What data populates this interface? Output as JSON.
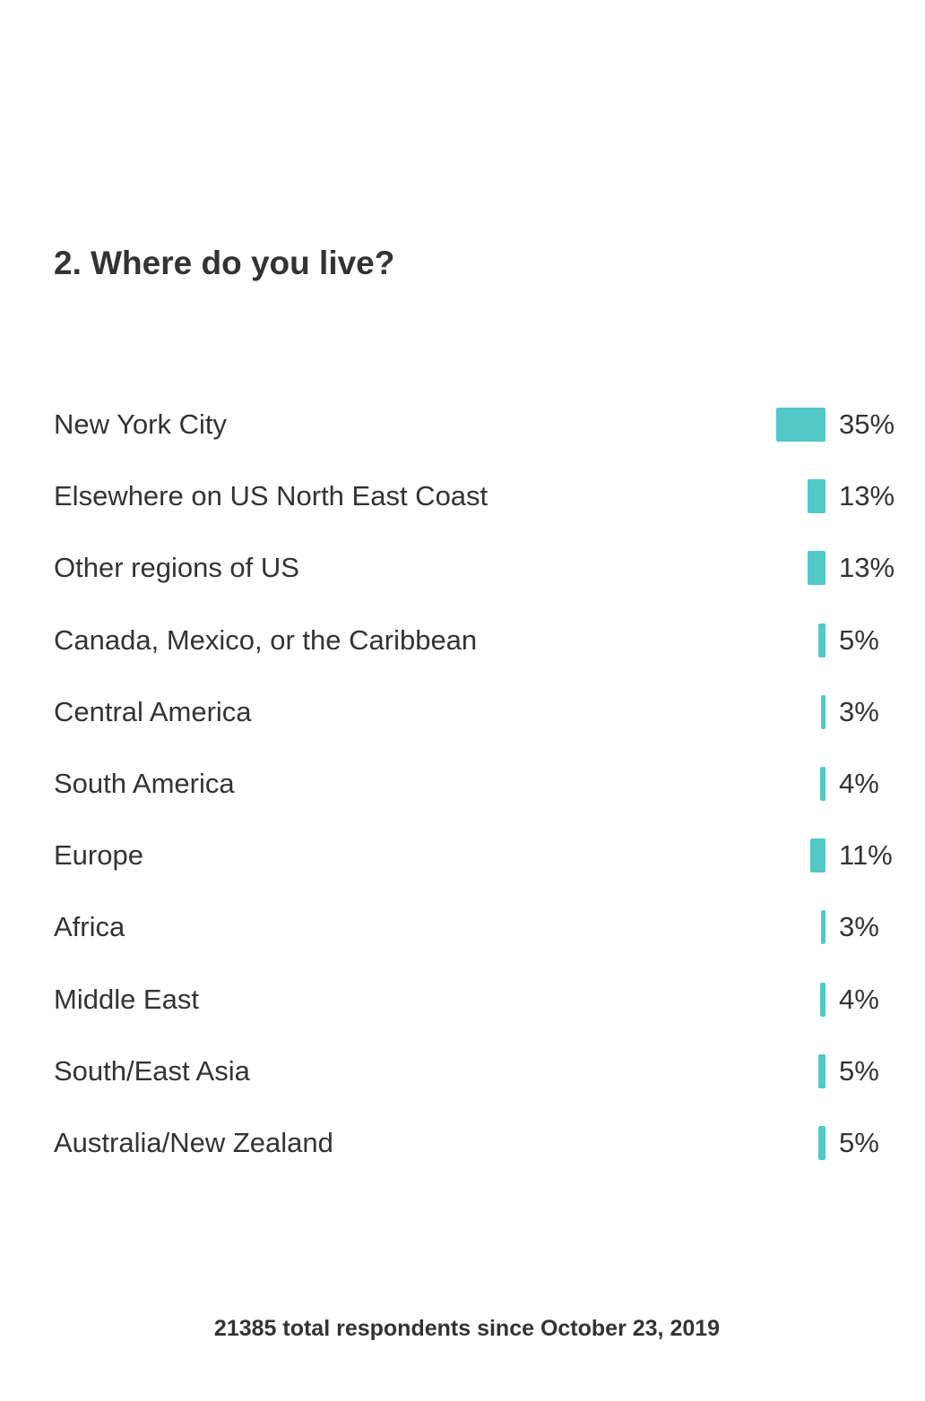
{
  "question": {
    "title": "2. Where do you live?"
  },
  "footer": {
    "text": "21385 total respondents since October 23, 2019"
  },
  "colors": {
    "bar": "#52c9c6",
    "text": "#333333",
    "background": "#ffffff"
  },
  "chart_data": {
    "type": "bar",
    "orientation": "horizontal",
    "title": "2. Where do you live?",
    "categories": [
      "New York City",
      "Elsewhere on US North East Coast",
      "Other regions of US",
      "Canada, Mexico, or the Caribbean",
      "Central America",
      "South America",
      "Europe",
      "Africa",
      "Middle East",
      "South/East Asia",
      "Australia/New Zealand"
    ],
    "values": [
      35,
      13,
      13,
      5,
      3,
      4,
      11,
      3,
      4,
      5,
      5
    ],
    "value_labels": [
      "35%",
      "13%",
      "13%",
      "5%",
      "3%",
      "4%",
      "11%",
      "3%",
      "4%",
      "5%",
      "5%"
    ],
    "unit": "%",
    "grid": false,
    "legend": "none"
  }
}
